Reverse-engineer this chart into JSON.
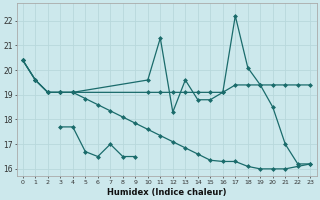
{
  "xlabel": "Humidex (Indice chaleur)",
  "bg_color": "#cce8ec",
  "grid_color": "#b8d8dc",
  "line_color": "#1a6b6b",
  "xlim": [
    -0.5,
    23.5
  ],
  "ylim": [
    15.7,
    22.7
  ],
  "yticks": [
    16,
    17,
    18,
    19,
    20,
    21,
    22
  ],
  "xticks": [
    0,
    1,
    2,
    3,
    4,
    5,
    6,
    7,
    8,
    9,
    10,
    11,
    12,
    13,
    14,
    15,
    16,
    17,
    18,
    19,
    20,
    21,
    22,
    23
  ],
  "series1_x": [
    0,
    1,
    2,
    3,
    4,
    10,
    11,
    12,
    13,
    14,
    15,
    16,
    17,
    18,
    19,
    20,
    21,
    22,
    23
  ],
  "series1_y": [
    20.4,
    19.6,
    19.1,
    19.1,
    19.1,
    19.6,
    21.3,
    18.3,
    19.6,
    18.8,
    18.8,
    19.1,
    22.2,
    20.1,
    19.4,
    18.5,
    17.0,
    16.2,
    16.2
  ],
  "series2_x": [
    0,
    1,
    2,
    3,
    4,
    10,
    11,
    12,
    13,
    14,
    15,
    16,
    17,
    18,
    19,
    20,
    21,
    22,
    23
  ],
  "series2_y": [
    20.4,
    19.6,
    19.1,
    19.1,
    19.1,
    19.1,
    19.1,
    19.1,
    19.1,
    19.1,
    19.1,
    19.1,
    19.4,
    19.4,
    19.4,
    19.4,
    19.4,
    19.4,
    19.4
  ],
  "series3_x": [
    3,
    4,
    5,
    6,
    7,
    8,
    9
  ],
  "series3_y": [
    17.7,
    17.7,
    16.7,
    16.5,
    17.0,
    16.5,
    16.5
  ],
  "series4_x": [
    0,
    1,
    2,
    3,
    4,
    5,
    6,
    7,
    8,
    9,
    10,
    11,
    12,
    13,
    14,
    15,
    16,
    17,
    18,
    19,
    20,
    21,
    22,
    23
  ],
  "series4_y": [
    20.4,
    19.6,
    19.1,
    19.1,
    19.1,
    18.85,
    18.6,
    18.35,
    18.1,
    17.85,
    17.6,
    17.35,
    17.1,
    16.85,
    16.6,
    16.35,
    16.3,
    16.3,
    16.1,
    16.0,
    16.0,
    16.0,
    16.1,
    16.2
  ]
}
